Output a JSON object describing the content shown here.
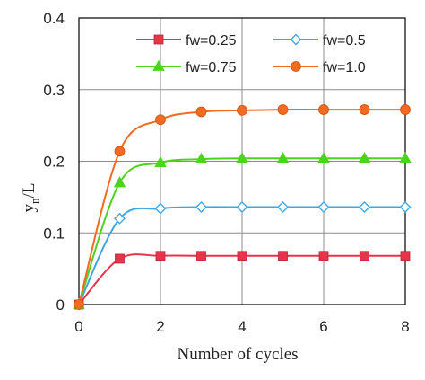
{
  "chart_data": {
    "type": "line",
    "title": "",
    "xlabel": "Number of cycles",
    "ylabel": "y",
    "ylabel_sub": "n",
    "ylabel_suffix": "/L",
    "xlim": [
      0,
      8
    ],
    "ylim": [
      0,
      0.4
    ],
    "xticks": [
      0,
      2,
      4,
      6,
      8
    ],
    "xtick_labels": [
      "0",
      "2",
      "4",
      "6",
      "8"
    ],
    "yticks": [
      0,
      0.1,
      0.2,
      0.3,
      0.4
    ],
    "ytick_labels": [
      "0",
      "0.1",
      "0.2",
      "0.3",
      "0.4"
    ],
    "grid": true,
    "legend_position": "top",
    "x": [
      0,
      1,
      2,
      3,
      4,
      5,
      6,
      7,
      8
    ],
    "series": [
      {
        "name": "fw=0.25",
        "color": "#E8344A",
        "marker": "square",
        "values": [
          0,
          0.064,
          0.068,
          0.068,
          0.068,
          0.068,
          0.068,
          0.068,
          0.068
        ]
      },
      {
        "name": "fw=0.5",
        "color": "#3FA7E0",
        "marker": "diamond",
        "values": [
          0,
          0.12,
          0.134,
          0.136,
          0.136,
          0.136,
          0.136,
          0.136,
          0.136
        ]
      },
      {
        "name": "fw=0.75",
        "color": "#4CD41C",
        "marker": "triangle",
        "values": [
          0,
          0.17,
          0.198,
          0.203,
          0.204,
          0.204,
          0.204,
          0.204,
          0.204
        ]
      },
      {
        "name": "fw=1.0",
        "color": "#F26B21",
        "marker": "circle",
        "values": [
          0,
          0.214,
          0.258,
          0.269,
          0.271,
          0.272,
          0.272,
          0.272,
          0.272
        ]
      }
    ]
  }
}
